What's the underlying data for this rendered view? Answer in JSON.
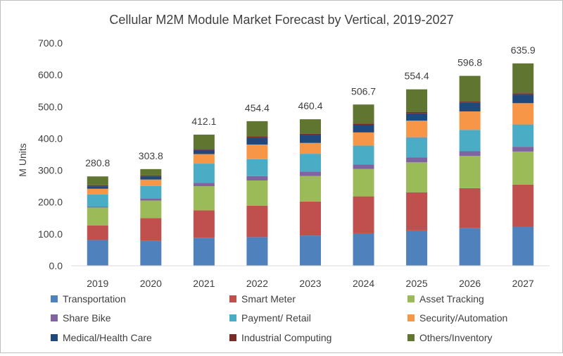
{
  "chart_data": {
    "type": "bar",
    "stacked": true,
    "title": "Cellular M2M Module Market Forecast by Vertical, 2019-2027",
    "xlabel": "",
    "ylabel": "M Units",
    "ylim": [
      0,
      700
    ],
    "yticks": [
      "0.0",
      "100.0",
      "200.0",
      "300.0",
      "400.0",
      "500.0",
      "600.0",
      "700.0"
    ],
    "grid": false,
    "legend_position": "bottom",
    "categories": [
      "2019",
      "2020",
      "2021",
      "2022",
      "2023",
      "2024",
      "2025",
      "2026",
      "2027"
    ],
    "totals": [
      280.8,
      303.8,
      412.1,
      454.4,
      460.4,
      506.7,
      554.4,
      596.8,
      635.9
    ],
    "total_labels": [
      "280.8",
      "303.8",
      "412.1",
      "454.4",
      "460.4",
      "506.7",
      "554.4",
      "596.8",
      "635.9"
    ],
    "series": [
      {
        "name": "Transportation",
        "color": "#4f81bd",
        "values": [
          81,
          78,
          88,
          90,
          95,
          102,
          111,
          118,
          123
        ]
      },
      {
        "name": "Smart Meter",
        "color": "#c0504d",
        "values": [
          46,
          72,
          86,
          99,
          107,
          116,
          120,
          126,
          132
        ]
      },
      {
        "name": "Asset Tracking",
        "color": "#9bbb59",
        "values": [
          56,
          55,
          76,
          79,
          80,
          86,
          94,
          101,
          104
        ]
      },
      {
        "name": "Share Bike",
        "color": "#8064a2",
        "values": [
          3,
          7,
          11,
          14,
          14,
          14,
          15,
          15,
          15
        ]
      },
      {
        "name": "Payment/ Retail",
        "color": "#4bacc6",
        "values": [
          38,
          39,
          60,
          53,
          56,
          60,
          64,
          67,
          70
        ]
      },
      {
        "name": "Security/Automation",
        "color": "#f79646",
        "values": [
          18,
          20,
          30,
          46,
          34,
          41,
          52,
          58,
          67
        ]
      },
      {
        "name": "Medical/Health Care",
        "color": "#1f497d",
        "values": [
          8,
          10,
          13,
          22,
          25,
          24,
          23,
          27,
          27
        ]
      },
      {
        "name": "Industrial Computing",
        "color": "#772c2a",
        "values": [
          3,
          3,
          3,
          4,
          4,
          4,
          4,
          4,
          4
        ]
      },
      {
        "name": "Others/Inventory",
        "color": "#5f7530",
        "values": [
          27.8,
          19.8,
          45.1,
          47.4,
          45.4,
          59.7,
          71.4,
          80.8,
          93.9
        ]
      }
    ]
  }
}
